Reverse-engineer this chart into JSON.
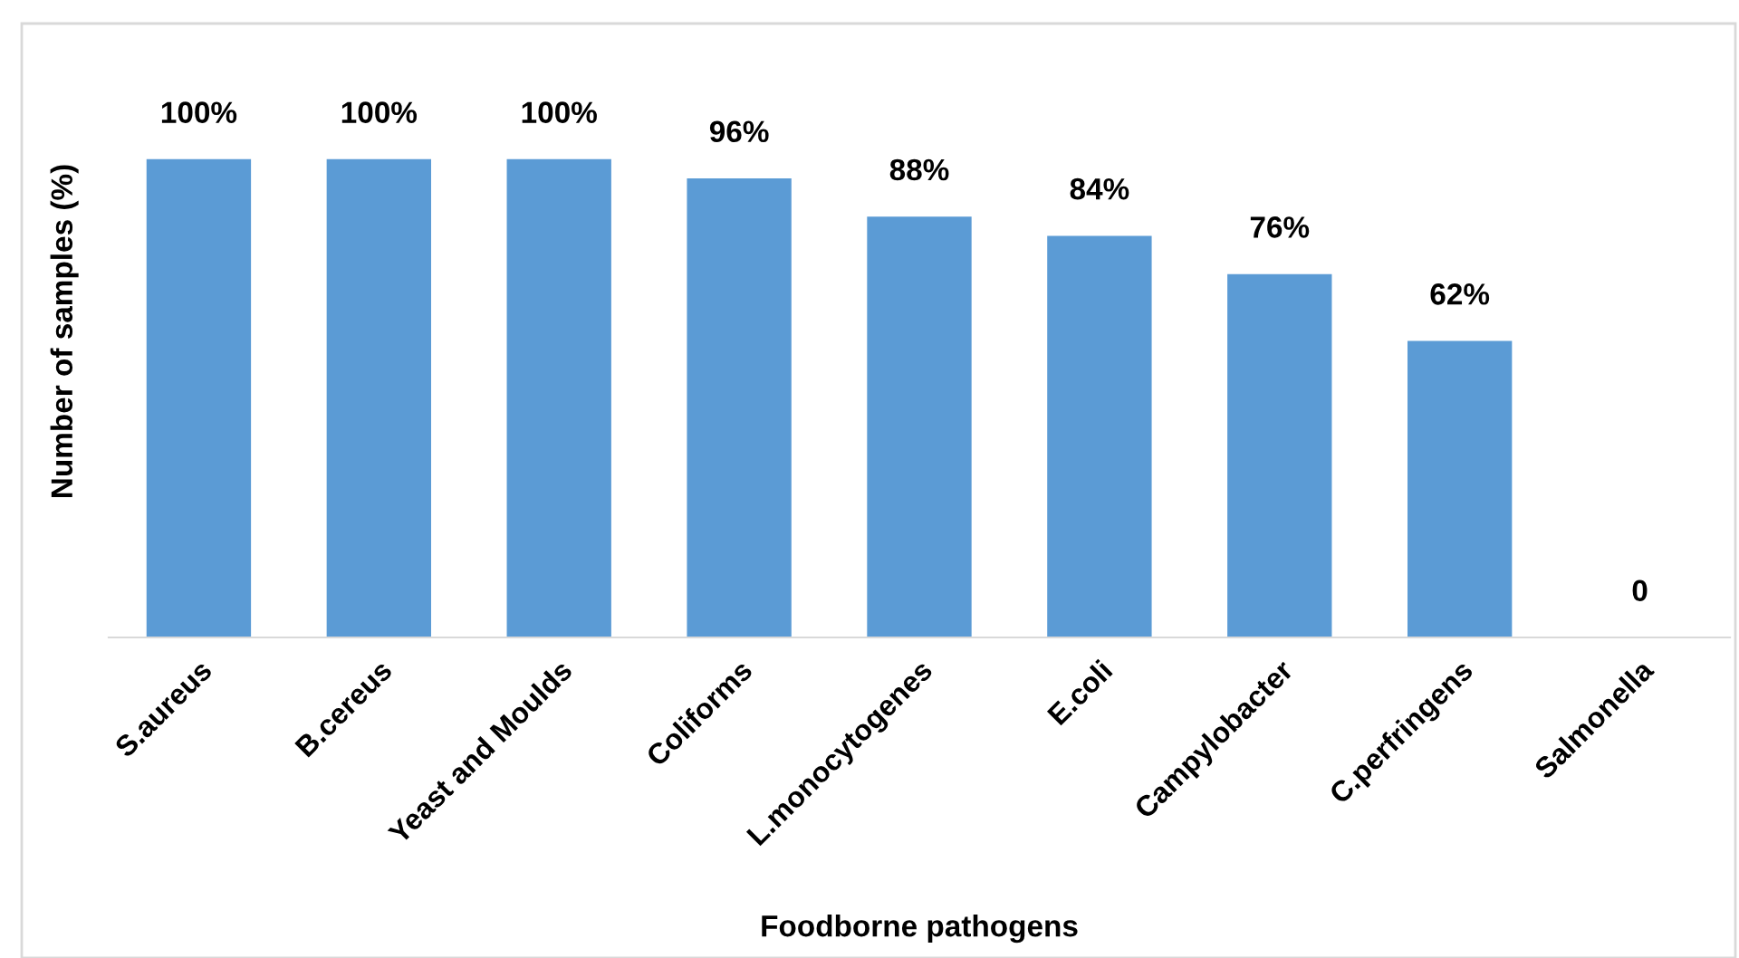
{
  "chart_data": {
    "type": "bar",
    "xlabel": "Foodborne pathogens",
    "ylabel": "Number of samples (%)",
    "categories": [
      "S.aureus",
      "B.cereus",
      "Yeast and Moulds",
      "Coliforms",
      "L.monocytogenes",
      "E.coli",
      "Campylobacter",
      "C.perfringens",
      "Salmonella"
    ],
    "values": [
      100,
      100,
      100,
      96,
      88,
      84,
      76,
      62,
      0
    ],
    "value_labels": [
      "100%",
      "100%",
      "100%",
      "96%",
      "88%",
      "84%",
      "76%",
      "62%",
      "0"
    ],
    "color": "#5b9bd5",
    "ylim": [
      0,
      128
    ],
    "tick_labels": "x",
    "grid": false,
    "legend": false
  }
}
